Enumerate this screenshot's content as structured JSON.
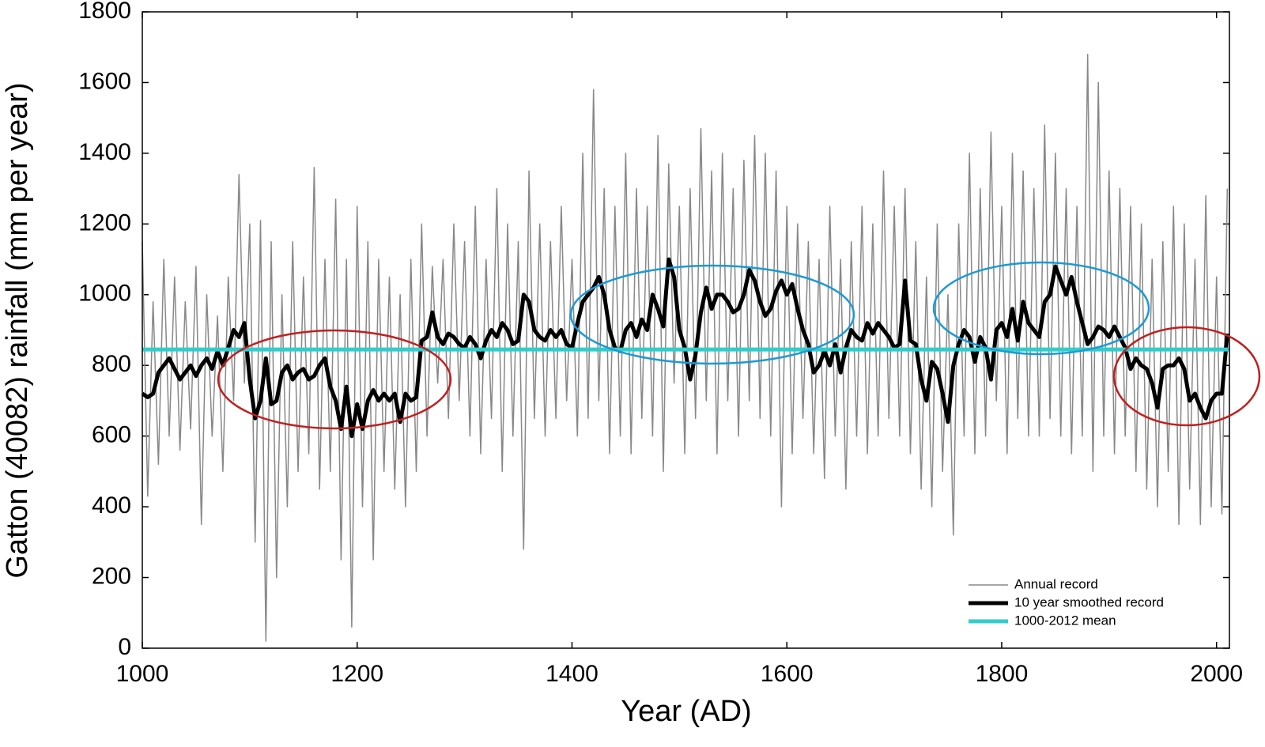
{
  "chart_data": {
    "type": "line",
    "xlabel": "Year (AD)",
    "ylabel": "Gatton (40082) rainfall (mm per year)",
    "x": [
      1000,
      1005,
      1010,
      1015,
      1020,
      1025,
      1030,
      1035,
      1040,
      1045,
      1050,
      1055,
      1060,
      1065,
      1070,
      1075,
      1080,
      1085,
      1090,
      1095,
      1100,
      1105,
      1110,
      1115,
      1120,
      1125,
      1130,
      1135,
      1140,
      1145,
      1150,
      1155,
      1160,
      1165,
      1170,
      1175,
      1180,
      1185,
      1190,
      1195,
      1200,
      1205,
      1210,
      1215,
      1220,
      1225,
      1230,
      1235,
      1240,
      1245,
      1250,
      1255,
      1260,
      1265,
      1270,
      1275,
      1280,
      1285,
      1290,
      1295,
      1300,
      1305,
      1310,
      1315,
      1320,
      1325,
      1330,
      1335,
      1340,
      1345,
      1350,
      1355,
      1360,
      1365,
      1370,
      1375,
      1380,
      1385,
      1390,
      1395,
      1400,
      1405,
      1410,
      1415,
      1420,
      1425,
      1430,
      1435,
      1440,
      1445,
      1450,
      1455,
      1460,
      1465,
      1470,
      1475,
      1480,
      1485,
      1490,
      1495,
      1500,
      1505,
      1510,
      1515,
      1520,
      1525,
      1530,
      1535,
      1540,
      1545,
      1550,
      1555,
      1560,
      1565,
      1570,
      1575,
      1580,
      1585,
      1590,
      1595,
      1600,
      1605,
      1610,
      1615,
      1620,
      1625,
      1630,
      1635,
      1640,
      1645,
      1650,
      1655,
      1660,
      1665,
      1670,
      1675,
      1680,
      1685,
      1690,
      1695,
      1700,
      1705,
      1710,
      1715,
      1720,
      1725,
      1730,
      1735,
      1740,
      1745,
      1750,
      1755,
      1760,
      1765,
      1770,
      1775,
      1780,
      1785,
      1790,
      1795,
      1800,
      1805,
      1810,
      1815,
      1820,
      1825,
      1830,
      1835,
      1840,
      1845,
      1850,
      1855,
      1860,
      1865,
      1870,
      1875,
      1880,
      1885,
      1890,
      1895,
      1900,
      1905,
      1910,
      1915,
      1920,
      1925,
      1930,
      1935,
      1940,
      1945,
      1950,
      1955,
      1960,
      1965,
      1970,
      1975,
      1980,
      1985,
      1990,
      1995,
      2000,
      2005,
      2010
    ],
    "series": [
      {
        "name": "Annual record",
        "color": "#888888",
        "width": 1.5,
        "values": [
          1150,
          430,
          980,
          520,
          1100,
          600,
          1050,
          560,
          980,
          620,
          1080,
          350,
          1000,
          600,
          940,
          500,
          1050,
          700,
          1340,
          750,
          1200,
          300,
          1210,
          20,
          1150,
          200,
          1000,
          400,
          1150,
          500,
          1050,
          550,
          1360,
          450,
          1100,
          500,
          1270,
          250,
          1100,
          60,
          1250,
          400,
          1150,
          250,
          1100,
          500,
          1050,
          450,
          1000,
          400,
          1100,
          500,
          1200,
          600,
          1080,
          750,
          1100,
          650,
          1200,
          700,
          1150,
          600,
          1250,
          550,
          1100,
          650,
          1300,
          500,
          1200,
          600,
          1150,
          280,
          1350,
          650,
          1200,
          600,
          1150,
          650,
          1250,
          700,
          1100,
          600,
          1400,
          650,
          1580,
          700,
          1300,
          550,
          1250,
          600,
          1400,
          550,
          1300,
          650,
          1250,
          600,
          1450,
          500,
          1370,
          750,
          1250,
          550,
          1300,
          650,
          1470,
          700,
          1350,
          550,
          1400,
          700,
          1300,
          600,
          1380,
          700,
          1450,
          650,
          1400,
          600,
          1350,
          400,
          1250,
          550,
          1200,
          650,
          1150,
          550,
          1100,
          480,
          1250,
          600,
          1100,
          450,
          1150,
          600,
          1250,
          550,
          1200,
          600,
          1350,
          650,
          1250,
          600,
          1300,
          550,
          1150,
          450,
          1050,
          400,
          1200,
          500,
          1000,
          320,
          1200,
          600,
          1400,
          550,
          1300,
          600,
          1460,
          700,
          1250,
          550,
          1400,
          650,
          1350,
          600,
          1300,
          600,
          1480,
          650,
          1400,
          600,
          1300,
          550,
          1250,
          600,
          1680,
          500,
          1600,
          600,
          1350,
          550,
          1300,
          600,
          1250,
          500,
          1200,
          450,
          1100,
          400,
          1150,
          500,
          1250,
          350,
          1200,
          450,
          1100,
          350,
          1280,
          400,
          1050,
          380,
          1300
        ]
      },
      {
        "name": "10 year smoothed record",
        "color": "#000000",
        "width": 5,
        "values": [
          720,
          710,
          720,
          780,
          800,
          820,
          790,
          760,
          780,
          800,
          770,
          800,
          820,
          790,
          840,
          800,
          850,
          900,
          880,
          920,
          760,
          650,
          700,
          820,
          690,
          700,
          780,
          800,
          760,
          780,
          790,
          760,
          770,
          800,
          820,
          740,
          700,
          620,
          740,
          600,
          690,
          620,
          700,
          730,
          700,
          720,
          700,
          720,
          640,
          720,
          700,
          710,
          870,
          880,
          950,
          880,
          860,
          890,
          880,
          860,
          850,
          880,
          860,
          820,
          870,
          900,
          880,
          920,
          900,
          860,
          870,
          1000,
          980,
          900,
          880,
          870,
          900,
          880,
          900,
          860,
          850,
          920,
          980,
          1000,
          1020,
          1050,
          1000,
          900,
          850,
          840,
          900,
          920,
          880,
          930,
          900,
          1000,
          960,
          910,
          1100,
          1050,
          900,
          850,
          760,
          830,
          950,
          1020,
          960,
          1000,
          1000,
          980,
          950,
          960,
          1000,
          1070,
          1040,
          980,
          940,
          960,
          1010,
          1040,
          1000,
          1030,
          960,
          900,
          860,
          780,
          800,
          840,
          800,
          860,
          780,
          850,
          900,
          880,
          870,
          920,
          890,
          920,
          900,
          880,
          850,
          860,
          1040,
          870,
          860,
          760,
          700,
          810,
          790,
          720,
          640,
          800,
          860,
          900,
          880,
          810,
          880,
          850,
          760,
          900,
          920,
          880,
          960,
          870,
          980,
          920,
          900,
          880,
          980,
          1000,
          1080,
          1040,
          1000,
          1050,
          980,
          920,
          860,
          880,
          910,
          900,
          880,
          910,
          880,
          850,
          790,
          820,
          800,
          790,
          750,
          680,
          790,
          800,
          800,
          820,
          790,
          700,
          720,
          680,
          650,
          700,
          720,
          720,
          890
        ]
      }
    ],
    "reference_line": {
      "name": "1000-2012 mean",
      "color": "#33cccc",
      "value": 845
    },
    "xlim": [
      1000,
      2012
    ],
    "ylim": [
      0,
      1800
    ],
    "xticks": [
      1000,
      1200,
      1400,
      1600,
      1800,
      2000
    ],
    "yticks": [
      0,
      200,
      400,
      600,
      800,
      1000,
      1200,
      1400,
      1600,
      1800
    ],
    "legend": "lower right"
  }
}
